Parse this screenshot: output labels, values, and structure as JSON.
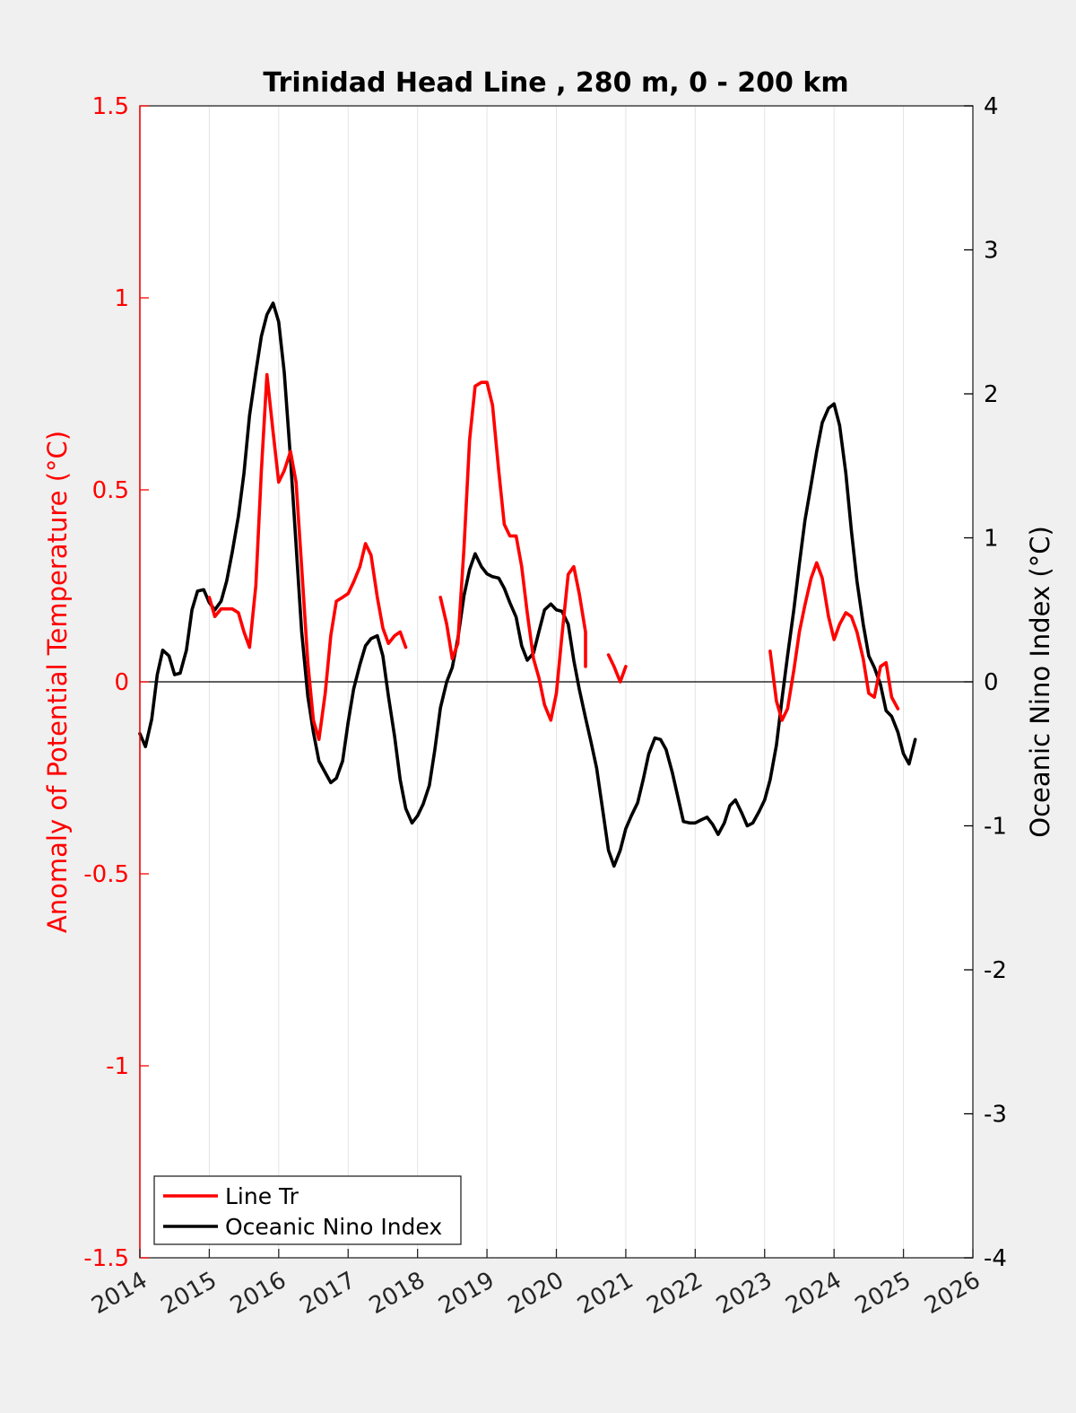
{
  "chart_data": {
    "type": "line",
    "title": "Trinidad Head Line , 280 m, 0 - 200 km",
    "xlabel": "",
    "ylabel_left": "Anomaly of Potential Temperature (°C)",
    "ylabel_right": "Oceanic Nino Index (°C)",
    "xlim": [
      2014,
      2026
    ],
    "ylim_left": [
      -1.5,
      1.5
    ],
    "ylim_right": [
      -4,
      4
    ],
    "x_ticks": [
      "2014",
      "2015",
      "2016",
      "2017",
      "2018",
      "2019",
      "2020",
      "2021",
      "2022",
      "2023",
      "2024",
      "2025",
      "2026"
    ],
    "y_left_ticks": [
      "-1.5",
      "-1",
      "-0.5",
      "0",
      "0.5",
      "1",
      "1.5"
    ],
    "y_right_ticks": [
      "-4",
      "-3",
      "-2",
      "-1",
      "0",
      "1",
      "2",
      "3",
      "4"
    ],
    "grid": "vertical",
    "legend_placement": "bottom-left",
    "colors": {
      "line_tr": "#ff0000",
      "oni": "#000000",
      "left_axis": "#ff0000"
    },
    "series": [
      {
        "name": "Line Tr",
        "axis": "left",
        "segments": [
          [
            [
              2015.0,
              0.22
            ],
            [
              2015.08,
              0.17
            ],
            [
              2015.17,
              0.19
            ],
            [
              2015.25,
              0.19
            ],
            [
              2015.33,
              0.19
            ],
            [
              2015.42,
              0.18
            ],
            [
              2015.5,
              0.13
            ],
            [
              2015.58,
              0.09
            ],
            [
              2015.67,
              0.25
            ],
            [
              2015.75,
              0.55
            ],
            [
              2015.83,
              0.8
            ],
            [
              2015.92,
              0.65
            ],
            [
              2016.0,
              0.52
            ],
            [
              2016.08,
              0.55
            ],
            [
              2016.17,
              0.6
            ],
            [
              2016.25,
              0.52
            ],
            [
              2016.33,
              0.3
            ],
            [
              2016.42,
              0.05
            ],
            [
              2016.5,
              -0.1
            ],
            [
              2016.58,
              -0.15
            ],
            [
              2016.67,
              -0.03
            ],
            [
              2016.75,
              0.12
            ],
            [
              2016.83,
              0.21
            ],
            [
              2016.92,
              0.22
            ],
            [
              2017.0,
              0.23
            ],
            [
              2017.08,
              0.26
            ],
            [
              2017.17,
              0.3
            ],
            [
              2017.25,
              0.36
            ],
            [
              2017.33,
              0.33
            ],
            [
              2017.42,
              0.22
            ],
            [
              2017.5,
              0.14
            ],
            [
              2017.58,
              0.1
            ],
            [
              2017.67,
              0.12
            ],
            [
              2017.75,
              0.13
            ],
            [
              2017.83,
              0.09
            ]
          ],
          [
            [
              2018.33,
              0.22
            ],
            [
              2018.42,
              0.15
            ],
            [
              2018.5,
              0.06
            ],
            [
              2018.58,
              0.1
            ],
            [
              2018.67,
              0.35
            ],
            [
              2018.75,
              0.63
            ],
            [
              2018.83,
              0.77
            ],
            [
              2018.92,
              0.78
            ],
            [
              2019.0,
              0.78
            ],
            [
              2019.08,
              0.72
            ],
            [
              2019.17,
              0.55
            ],
            [
              2019.25,
              0.41
            ],
            [
              2019.33,
              0.38
            ],
            [
              2019.42,
              0.38
            ],
            [
              2019.5,
              0.3
            ],
            [
              2019.58,
              0.18
            ],
            [
              2019.67,
              0.06
            ],
            [
              2019.75,
              0.01
            ],
            [
              2019.83,
              -0.06
            ],
            [
              2019.92,
              -0.1
            ],
            [
              2020.0,
              -0.03
            ],
            [
              2020.08,
              0.12
            ],
            [
              2020.17,
              0.28
            ],
            [
              2020.25,
              0.3
            ],
            [
              2020.33,
              0.23
            ],
            [
              2020.42,
              0.13
            ],
            [
              2020.42,
              0.04
            ]
          ],
          [
            [
              2020.75,
              0.07
            ],
            [
              2020.83,
              0.04
            ],
            [
              2020.92,
              0.0
            ],
            [
              2021.0,
              0.04
            ]
          ],
          [
            [
              2023.08,
              0.08
            ],
            [
              2023.17,
              -0.05
            ],
            [
              2023.25,
              -0.1
            ],
            [
              2023.33,
              -0.07
            ],
            [
              2023.42,
              0.03
            ],
            [
              2023.5,
              0.13
            ],
            [
              2023.58,
              0.2
            ],
            [
              2023.67,
              0.27
            ],
            [
              2023.75,
              0.31
            ],
            [
              2023.83,
              0.27
            ],
            [
              2023.92,
              0.17
            ],
            [
              2024.0,
              0.11
            ],
            [
              2024.08,
              0.15
            ],
            [
              2024.17,
              0.18
            ],
            [
              2024.25,
              0.17
            ],
            [
              2024.33,
              0.13
            ],
            [
              2024.42,
              0.06
            ],
            [
              2024.5,
              -0.03
            ],
            [
              2024.58,
              -0.04
            ],
            [
              2024.67,
              0.04
            ],
            [
              2024.75,
              0.05
            ],
            [
              2024.83,
              -0.04
            ],
            [
              2024.92,
              -0.07
            ]
          ]
        ]
      },
      {
        "name": "Oceanic Nino Index",
        "axis": "right",
        "segments": [
          [
            [
              2014.0,
              -0.36
            ],
            [
              2014.08,
              -0.45
            ],
            [
              2014.17,
              -0.26
            ],
            [
              2014.25,
              0.05
            ],
            [
              2014.33,
              0.22
            ],
            [
              2014.42,
              0.18
            ],
            [
              2014.5,
              0.05
            ],
            [
              2014.58,
              0.06
            ],
            [
              2014.67,
              0.22
            ],
            [
              2014.75,
              0.5
            ],
            [
              2014.83,
              0.63
            ],
            [
              2014.92,
              0.64
            ],
            [
              2015.0,
              0.55
            ],
            [
              2015.08,
              0.5
            ],
            [
              2015.17,
              0.56
            ],
            [
              2015.25,
              0.7
            ],
            [
              2015.33,
              0.9
            ],
            [
              2015.42,
              1.15
            ],
            [
              2015.5,
              1.45
            ],
            [
              2015.58,
              1.85
            ],
            [
              2015.67,
              2.15
            ],
            [
              2015.75,
              2.4
            ],
            [
              2015.83,
              2.55
            ],
            [
              2015.92,
              2.63
            ],
            [
              2016.0,
              2.5
            ],
            [
              2016.08,
              2.15
            ],
            [
              2016.17,
              1.55
            ],
            [
              2016.25,
              0.95
            ],
            [
              2016.33,
              0.35
            ],
            [
              2016.42,
              -0.1
            ],
            [
              2016.5,
              -0.35
            ],
            [
              2016.58,
              -0.55
            ],
            [
              2016.67,
              -0.63
            ],
            [
              2016.75,
              -0.7
            ],
            [
              2016.83,
              -0.67
            ],
            [
              2016.92,
              -0.55
            ],
            [
              2017.0,
              -0.28
            ],
            [
              2017.08,
              -0.05
            ],
            [
              2017.17,
              0.12
            ],
            [
              2017.25,
              0.25
            ],
            [
              2017.33,
              0.3
            ],
            [
              2017.42,
              0.32
            ],
            [
              2017.5,
              0.18
            ],
            [
              2017.58,
              -0.1
            ],
            [
              2017.67,
              -0.38
            ],
            [
              2017.75,
              -0.68
            ],
            [
              2017.83,
              -0.88
            ],
            [
              2017.92,
              -0.98
            ],
            [
              2018.0,
              -0.93
            ],
            [
              2018.08,
              -0.85
            ],
            [
              2018.17,
              -0.72
            ],
            [
              2018.25,
              -0.47
            ],
            [
              2018.33,
              -0.18
            ],
            [
              2018.42,
              0.0
            ],
            [
              2018.5,
              0.1
            ],
            [
              2018.58,
              0.3
            ],
            [
              2018.67,
              0.6
            ],
            [
              2018.75,
              0.78
            ],
            [
              2018.83,
              0.89
            ],
            [
              2018.92,
              0.8
            ],
            [
              2019.0,
              0.75
            ],
            [
              2019.08,
              0.73
            ],
            [
              2019.17,
              0.72
            ],
            [
              2019.25,
              0.65
            ],
            [
              2019.33,
              0.55
            ],
            [
              2019.42,
              0.45
            ],
            [
              2019.5,
              0.25
            ],
            [
              2019.58,
              0.15
            ],
            [
              2019.67,
              0.2
            ],
            [
              2019.75,
              0.35
            ],
            [
              2019.83,
              0.5
            ],
            [
              2019.92,
              0.54
            ],
            [
              2020.0,
              0.5
            ],
            [
              2020.08,
              0.49
            ],
            [
              2020.17,
              0.4
            ],
            [
              2020.25,
              0.15
            ],
            [
              2020.33,
              -0.05
            ],
            [
              2020.42,
              -0.25
            ],
            [
              2020.5,
              -0.42
            ],
            [
              2020.58,
              -0.6
            ],
            [
              2020.67,
              -0.9
            ],
            [
              2020.75,
              -1.17
            ],
            [
              2020.83,
              -1.28
            ],
            [
              2020.92,
              -1.17
            ],
            [
              2021.0,
              -1.02
            ],
            [
              2021.08,
              -0.93
            ],
            [
              2021.17,
              -0.84
            ],
            [
              2021.25,
              -0.68
            ],
            [
              2021.33,
              -0.5
            ],
            [
              2021.42,
              -0.39
            ],
            [
              2021.5,
              -0.4
            ],
            [
              2021.58,
              -0.47
            ],
            [
              2021.67,
              -0.63
            ],
            [
              2021.75,
              -0.8
            ],
            [
              2021.83,
              -0.97
            ],
            [
              2021.92,
              -0.98
            ],
            [
              2022.0,
              -0.98
            ],
            [
              2022.08,
              -0.96
            ],
            [
              2022.17,
              -0.94
            ],
            [
              2022.25,
              -0.99
            ],
            [
              2022.33,
              -1.06
            ],
            [
              2022.42,
              -0.98
            ],
            [
              2022.5,
              -0.86
            ],
            [
              2022.58,
              -0.82
            ],
            [
              2022.67,
              -0.91
            ],
            [
              2022.75,
              -1.0
            ],
            [
              2022.83,
              -0.98
            ],
            [
              2022.92,
              -0.9
            ],
            [
              2023.0,
              -0.82
            ],
            [
              2023.08,
              -0.68
            ],
            [
              2023.17,
              -0.44
            ],
            [
              2023.25,
              -0.12
            ],
            [
              2023.33,
              0.18
            ],
            [
              2023.42,
              0.5
            ],
            [
              2023.5,
              0.82
            ],
            [
              2023.58,
              1.12
            ],
            [
              2023.67,
              1.37
            ],
            [
              2023.75,
              1.6
            ],
            [
              2023.83,
              1.8
            ],
            [
              2023.92,
              1.9
            ],
            [
              2024.0,
              1.93
            ],
            [
              2024.08,
              1.78
            ],
            [
              2024.17,
              1.45
            ],
            [
              2024.25,
              1.05
            ],
            [
              2024.33,
              0.7
            ],
            [
              2024.42,
              0.4
            ],
            [
              2024.5,
              0.18
            ],
            [
              2024.58,
              0.1
            ],
            [
              2024.67,
              -0.02
            ],
            [
              2024.75,
              -0.2
            ],
            [
              2024.83,
              -0.24
            ],
            [
              2024.92,
              -0.35
            ],
            [
              2025.0,
              -0.5
            ],
            [
              2025.08,
              -0.57
            ],
            [
              2025.17,
              -0.4
            ]
          ]
        ]
      }
    ]
  }
}
